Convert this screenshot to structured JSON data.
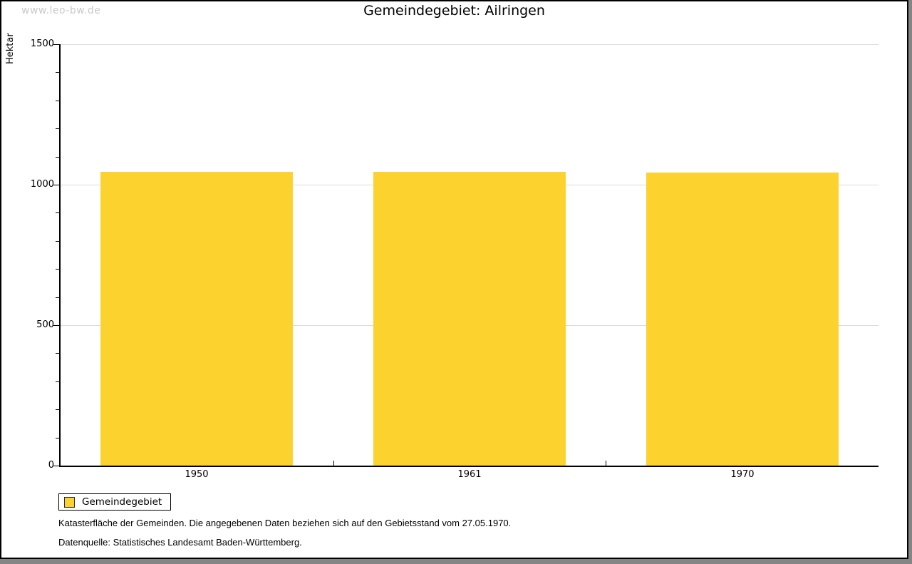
{
  "watermark": "www.leo-bw.de",
  "title": "Gemeindegebiet: Ailringen",
  "chart_data": {
    "type": "bar",
    "categories": [
      "1950",
      "1961",
      "1970"
    ],
    "series": [
      {
        "name": "Gemeindegebiet",
        "values": [
          1045,
          1045,
          1043
        ]
      }
    ],
    "title": "Gemeindegebiet: Ailringen",
    "xlabel": "",
    "ylabel": "Hektar",
    "ylim": [
      0,
      1500
    ],
    "yticks": [
      0,
      500,
      1000,
      1500
    ],
    "minor_tick_step": 100,
    "grid": true,
    "legend_position": "bottom-left"
  },
  "legend": {
    "label": "Gemeindegebiet"
  },
  "footnotes": {
    "line1": "Katasterfläche der Gemeinden. Die angegebenen Daten beziehen sich auf den Gebietsstand vom 27.05.1970.",
    "line2": "Datenquelle: Statistisches Landesamt Baden-Württemberg."
  },
  "colors": {
    "bar": "#fcd32e",
    "grid": "#dcdcdc",
    "axis": "#000000",
    "watermark": "#c9c9c9",
    "shadow": "#858585"
  }
}
